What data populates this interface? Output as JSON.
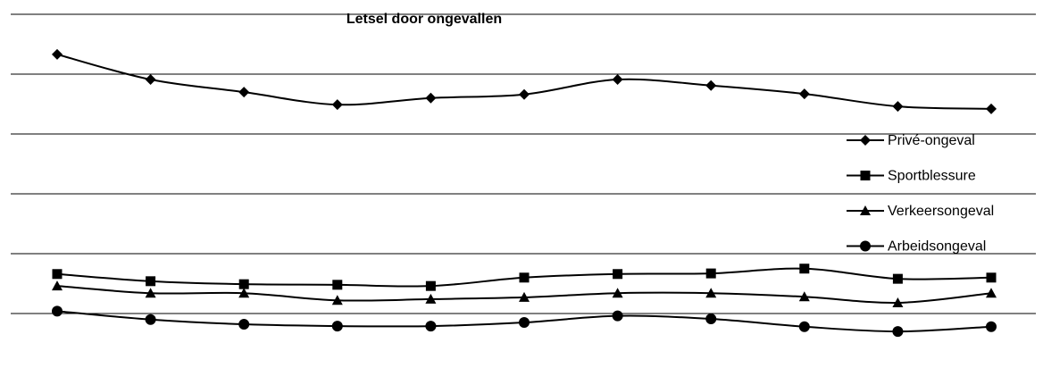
{
  "chart_data": {
    "type": "line",
    "title": "Letsel door ongevallen",
    "categories": [
      null,
      null,
      null,
      null,
      null,
      null,
      null,
      null,
      null,
      null,
      null
    ],
    "ylim": [
      0,
      6
    ],
    "yticks": [
      1,
      2,
      3,
      4,
      5,
      6
    ],
    "grid": true,
    "legend": "right",
    "series": [
      {
        "name": "Privé-ongeval",
        "color": "#000000",
        "marker": "diamond",
        "values": [
          5.33,
          4.91,
          4.7,
          4.49,
          4.6,
          4.66,
          4.91,
          4.81,
          4.67,
          4.46,
          4.42
        ]
      },
      {
        "name": "Sportblessure",
        "color": "#000000",
        "marker": "square",
        "values": [
          1.66,
          1.54,
          1.49,
          1.48,
          1.46,
          1.6,
          1.66,
          1.67,
          1.75,
          1.58,
          1.6
        ]
      },
      {
        "name": "Verkeersongeval",
        "color": "#000000",
        "marker": "triangle",
        "values": [
          1.46,
          1.34,
          1.34,
          1.22,
          1.24,
          1.27,
          1.34,
          1.34,
          1.28,
          1.18,
          1.34
        ]
      },
      {
        "name": "Arbeidsongeval",
        "color": "#000000",
        "marker": "circle",
        "values": [
          1.04,
          0.9,
          0.82,
          0.79,
          0.79,
          0.85,
          0.96,
          0.91,
          0.78,
          0.7,
          0.78
        ]
      }
    ]
  }
}
